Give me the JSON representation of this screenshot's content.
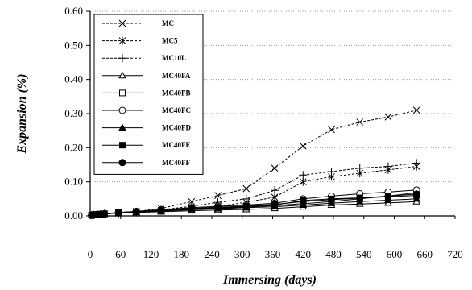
{
  "chart_data": {
    "type": "line",
    "xlabel": "Immersing (days)",
    "ylabel": "Expansion (%)",
    "xlim": [
      0,
      720
    ],
    "ylim": [
      0,
      0.6
    ],
    "xticks": [
      "0",
      "60",
      "120",
      "180",
      "240",
      "300",
      "360",
      "420",
      "480",
      "540",
      "600",
      "660",
      "720"
    ],
    "yticks": [
      "0.00",
      "0.10",
      "0.20",
      "0.30",
      "0.40",
      "0.50",
      "0.60"
    ],
    "grid": "horizontal dotted",
    "legend_position": "top-left",
    "series": [
      {
        "name": "MC",
        "marker": "x",
        "line": "dashed",
        "x": [
          3,
          7,
          14,
          21,
          28,
          56,
          91,
          140,
          200,
          252,
          308,
          364,
          420,
          476,
          532,
          588,
          644
        ],
        "y": [
          0.002,
          0.003,
          0.004,
          0.005,
          0.006,
          0.01,
          0.013,
          0.022,
          0.042,
          0.06,
          0.08,
          0.14,
          0.205,
          0.253,
          0.275,
          0.29,
          0.31
        ]
      },
      {
        "name": "MC5",
        "marker": "asterisk",
        "line": "dashed",
        "x": [
          3,
          7,
          14,
          21,
          28,
          56,
          91,
          140,
          200,
          252,
          308,
          364,
          420,
          476,
          532,
          588,
          644
        ],
        "y": [
          0.002,
          0.003,
          0.004,
          0.005,
          0.006,
          0.008,
          0.01,
          0.015,
          0.02,
          0.028,
          0.04,
          0.055,
          0.1,
          0.115,
          0.125,
          0.135,
          0.145
        ]
      },
      {
        "name": "MC10L",
        "marker": "plus",
        "line": "dashed",
        "x": [
          3,
          7,
          14,
          21,
          28,
          56,
          91,
          140,
          200,
          252,
          308,
          364,
          420,
          476,
          532,
          588,
          644
        ],
        "y": [
          0.002,
          0.003,
          0.004,
          0.005,
          0.006,
          0.009,
          0.012,
          0.018,
          0.028,
          0.04,
          0.05,
          0.075,
          0.12,
          0.13,
          0.14,
          0.145,
          0.155
        ]
      },
      {
        "name": "MC40FA",
        "marker": "triangle-open",
        "line": "solid",
        "x": [
          3,
          7,
          14,
          21,
          28,
          56,
          91,
          140,
          200,
          252,
          308,
          364,
          420,
          476,
          532,
          588,
          644
        ],
        "y": [
          0.002,
          0.003,
          0.004,
          0.005,
          0.006,
          0.008,
          0.01,
          0.012,
          0.015,
          0.017,
          0.019,
          0.022,
          0.027,
          0.032,
          0.035,
          0.038,
          0.042
        ]
      },
      {
        "name": "MC40FB",
        "marker": "square-open",
        "line": "solid",
        "x": [
          3,
          7,
          14,
          21,
          28,
          56,
          91,
          140,
          200,
          252,
          308,
          364,
          420,
          476,
          532,
          588,
          644
        ],
        "y": [
          0.002,
          0.003,
          0.004,
          0.005,
          0.006,
          0.009,
          0.012,
          0.016,
          0.02,
          0.023,
          0.026,
          0.03,
          0.036,
          0.042,
          0.05,
          0.058,
          0.068
        ]
      },
      {
        "name": "MC40FC",
        "marker": "circle-open",
        "line": "solid",
        "x": [
          3,
          7,
          14,
          21,
          28,
          56,
          91,
          140,
          200,
          252,
          308,
          364,
          420,
          476,
          532,
          588,
          644
        ],
        "y": [
          0.002,
          0.003,
          0.004,
          0.005,
          0.006,
          0.01,
          0.013,
          0.018,
          0.024,
          0.028,
          0.032,
          0.037,
          0.05,
          0.058,
          0.065,
          0.07,
          0.076
        ]
      },
      {
        "name": "MC40FD",
        "marker": "triangle-filled",
        "line": "solid",
        "x": [
          3,
          7,
          14,
          21,
          28,
          56,
          91,
          140,
          200,
          252,
          308,
          364,
          420,
          476,
          532,
          588,
          644
        ],
        "y": [
          0.002,
          0.003,
          0.004,
          0.005,
          0.006,
          0.008,
          0.011,
          0.014,
          0.018,
          0.021,
          0.024,
          0.027,
          0.032,
          0.037,
          0.042,
          0.046,
          0.05
        ]
      },
      {
        "name": "MC40FE",
        "marker": "square-filled",
        "line": "solid",
        "x": [
          3,
          7,
          14,
          21,
          28,
          56,
          91,
          140,
          200,
          252,
          308,
          364,
          420,
          476,
          532,
          588,
          644
        ],
        "y": [
          0.002,
          0.003,
          0.004,
          0.005,
          0.006,
          0.009,
          0.012,
          0.016,
          0.02,
          0.024,
          0.028,
          0.032,
          0.045,
          0.05,
          0.053,
          0.056,
          0.06
        ]
      },
      {
        "name": "MC40FF",
        "marker": "circle-filled",
        "line": "solid",
        "x": [
          3,
          7,
          14,
          21,
          28,
          56,
          91,
          140,
          200,
          252,
          308,
          364,
          420,
          476,
          532,
          588,
          644
        ],
        "y": [
          0.002,
          0.003,
          0.004,
          0.005,
          0.006,
          0.01,
          0.013,
          0.017,
          0.022,
          0.025,
          0.029,
          0.034,
          0.042,
          0.048,
          0.052,
          0.058,
          0.064
        ]
      }
    ]
  }
}
